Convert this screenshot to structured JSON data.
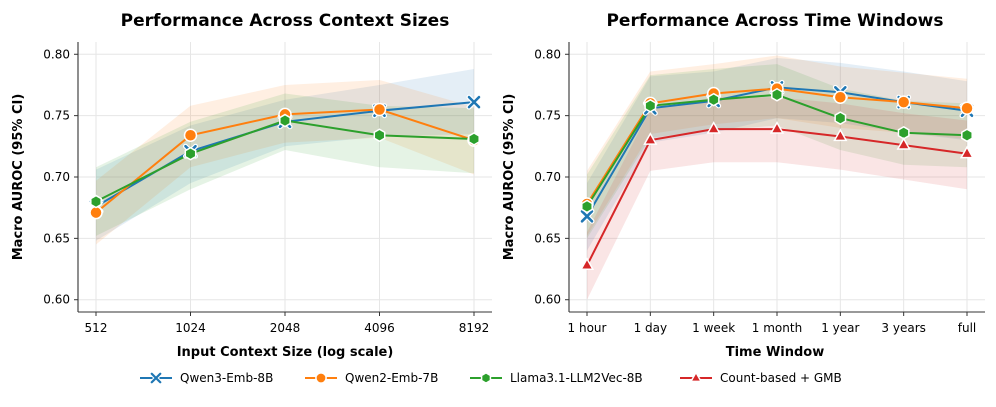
{
  "chart_data": [
    {
      "type": "line",
      "title": "Performance Across Context Sizes",
      "xlabel": "Input Context Size (log scale)",
      "ylabel": "Macro AUROC (95% CI)",
      "categories": [
        "512",
        "1024",
        "2048",
        "4096",
        "8192"
      ],
      "ylim": [
        0.59,
        0.81
      ],
      "yticks": [
        "0.60",
        "0.65",
        "0.70",
        "0.75",
        "0.80"
      ],
      "grid": true,
      "series": [
        {
          "name": "Qwen3-Emb-8B",
          "values": [
            0.676,
            0.721,
            0.745,
            0.754,
            0.761
          ],
          "ci_low": [
            0.648,
            0.695,
            0.725,
            0.733,
            0.735
          ],
          "ci_high": [
            0.706,
            0.742,
            0.763,
            0.775,
            0.788
          ]
        },
        {
          "name": "Qwen2-Emb-7B",
          "values": [
            0.671,
            0.734,
            0.751,
            0.755,
            0.73
          ],
          "ci_low": [
            0.645,
            0.708,
            0.728,
            0.732,
            0.702
          ],
          "ci_high": [
            0.697,
            0.758,
            0.775,
            0.779,
            0.757
          ]
        },
        {
          "name": "Llama3.1-LLM2Vec-8B",
          "values": [
            0.68,
            0.719,
            0.746,
            0.734,
            0.731
          ],
          "ci_low": [
            0.652,
            0.69,
            0.722,
            0.708,
            0.703
          ],
          "ci_high": [
            0.708,
            0.745,
            0.768,
            0.758,
            0.756
          ]
        }
      ]
    },
    {
      "type": "line",
      "title": "Performance Across Time Windows",
      "xlabel": "Time Window",
      "ylabel": "Macro AUROC (95% CI)",
      "categories": [
        "1 hour",
        "1 day",
        "1 week",
        "1 month",
        "1 year",
        "3 years",
        "full"
      ],
      "ylim": [
        0.59,
        0.81
      ],
      "yticks": [
        "0.60",
        "0.65",
        "0.70",
        "0.75",
        "0.80"
      ],
      "grid": true,
      "series": [
        {
          "name": "Qwen3-Emb-8B",
          "values": [
            0.668,
            0.756,
            0.762,
            0.773,
            0.769,
            0.761,
            0.754
          ],
          "ci_low": [
            0.64,
            0.728,
            0.736,
            0.748,
            0.744,
            0.736,
            0.73
          ],
          "ci_high": [
            0.695,
            0.782,
            0.786,
            0.797,
            0.793,
            0.786,
            0.778
          ]
        },
        {
          "name": "Qwen2-Emb-7B",
          "values": [
            0.678,
            0.76,
            0.768,
            0.772,
            0.765,
            0.761,
            0.756
          ],
          "ci_low": [
            0.652,
            0.735,
            0.743,
            0.748,
            0.74,
            0.736,
            0.731
          ],
          "ci_high": [
            0.705,
            0.786,
            0.792,
            0.799,
            0.79,
            0.785,
            0.78
          ]
        },
        {
          "name": "Llama3.1-LLM2Vec-8B",
          "values": [
            0.676,
            0.758,
            0.763,
            0.767,
            0.748,
            0.736,
            0.734
          ],
          "ci_low": [
            0.65,
            0.732,
            0.738,
            0.742,
            0.722,
            0.71,
            0.708
          ],
          "ci_high": [
            0.702,
            0.783,
            0.788,
            0.792,
            0.772,
            0.762,
            0.76
          ]
        },
        {
          "name": "Count-based + GMB",
          "values": [
            0.628,
            0.73,
            0.739,
            0.739,
            0.733,
            0.726,
            0.719
          ],
          "ci_low": [
            0.6,
            0.705,
            0.712,
            0.712,
            0.706,
            0.698,
            0.69
          ],
          "ci_high": [
            0.655,
            0.755,
            0.765,
            0.765,
            0.76,
            0.752,
            0.746
          ]
        }
      ]
    }
  ],
  "legend": {
    "position": "bottom-center",
    "entries": [
      {
        "label": "Qwen3-Emb-8B",
        "color": "#1f77b4",
        "marker": "x"
      },
      {
        "label": "Qwen2-Emb-7B",
        "color": "#ff7f0e",
        "marker": "circle"
      },
      {
        "label": "Llama3.1-LLM2Vec-8B",
        "color": "#2ca02c",
        "marker": "hexagon"
      },
      {
        "label": "Count-based + GMB",
        "color": "#d62728",
        "marker": "triangle"
      }
    ]
  }
}
